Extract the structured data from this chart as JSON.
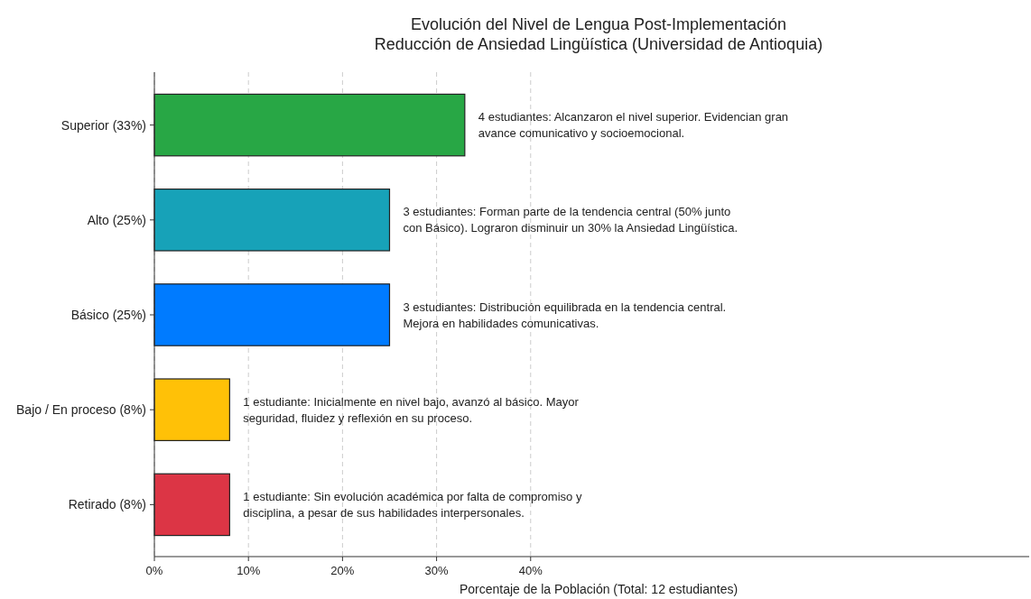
{
  "chart_data": {
    "type": "bar",
    "orientation": "horizontal",
    "title": "Evolución del Nivel de Lengua Post-Implementación\nReducción de Ansiedad Lingüística (Universidad de Antioquia)",
    "xlabel": "Porcentaje de la Población (Total: 12 estudiantes)",
    "categories": [
      "Superior (33%)",
      "Alto (25%)",
      "Básico (25%)",
      "Bajo / En proceso (8%)",
      "Retirado (8%)"
    ],
    "values": [
      33,
      25,
      25,
      8,
      8
    ],
    "colors": [
      "#28a745",
      "#17a2b8",
      "#007bff",
      "#ffc107",
      "#dc3545"
    ],
    "xlim": [
      0,
      93
    ],
    "xticks": [
      {
        "value": 0,
        "label": "0%"
      },
      {
        "value": 10,
        "label": "10%"
      },
      {
        "value": 20,
        "label": "20%"
      },
      {
        "value": 30,
        "label": "30%"
      },
      {
        "value": 40,
        "label": "40%"
      }
    ],
    "grid": "x",
    "annotations": [
      {
        "text": "4 estudiantes: Alcanzaron el nivel superior. Evidencian gran\navance comunicativo y socioemocional.",
        "x": 33,
        "y": "Superior (33%)"
      },
      {
        "text": "3 estudiantes: Forman parte de la tendencia central (50% junto\ncon Básico). Lograron disminuir un 30% la Ansiedad Lingüística.",
        "x": 25,
        "y": "Alto (25%)"
      },
      {
        "text": "3 estudiantes: Distribución equilibrada en la tendencia central.\nMejora en habilidades comunicativas.",
        "x": 25,
        "y": "Básico (25%)"
      },
      {
        "text": "1 estudiante: Inicialmente en nivel bajo, avanzó al básico. Mayor\nseguridad, fluidez y reflexión en su proceso.",
        "x": 8,
        "y": "Bajo / En proceso (8%)"
      },
      {
        "text": "1 estudiante: Sin evolución académica por falta de compromiso y\ndisciplina, a pesar de sus habilidades interpersonales.",
        "x": 8,
        "y": "Retirado (8%)"
      }
    ]
  }
}
